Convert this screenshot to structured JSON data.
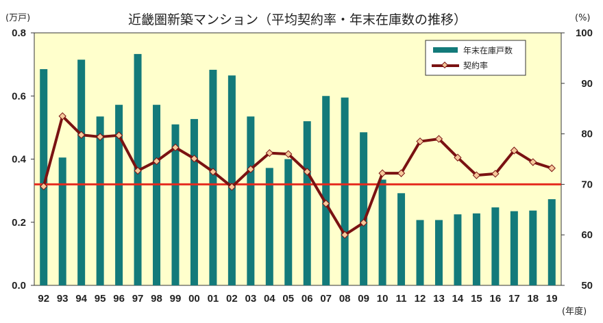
{
  "chart_data": {
    "type": "bar+line",
    "title": "近畿圏新築マンション（平均契約率・年末在庫数の推移）",
    "x_unit_label": "(年度)",
    "y_left_unit_label": "(万戸)",
    "y_right_unit_label": "(%)",
    "categories": [
      "92",
      "93",
      "94",
      "95",
      "96",
      "97",
      "98",
      "99",
      "00",
      "01",
      "02",
      "03",
      "04",
      "05",
      "06",
      "07",
      "08",
      "09",
      "10",
      "11",
      "12",
      "13",
      "14",
      "15",
      "16",
      "17",
      "18",
      "19"
    ],
    "y_left": {
      "min": 0,
      "max": 0.8,
      "ticks": [
        "0.0",
        "0.2",
        "0.4",
        "0.6",
        "0.8"
      ]
    },
    "y_right": {
      "min": 50,
      "max": 100,
      "ticks": [
        "50",
        "60",
        "70",
        "80",
        "90",
        "100"
      ]
    },
    "series": [
      {
        "name": "年末在庫戸数",
        "type": "bar",
        "axis": "left",
        "color": "#137a7a",
        "values": [
          0.685,
          0.405,
          0.715,
          0.535,
          0.572,
          0.733,
          0.572,
          0.51,
          0.527,
          0.683,
          0.665,
          0.535,
          0.372,
          0.4,
          0.52,
          0.6,
          0.595,
          0.485,
          0.335,
          0.292,
          0.207,
          0.207,
          0.225,
          0.228,
          0.247,
          0.235,
          0.237,
          0.273
        ]
      },
      {
        "name": "契約率",
        "type": "line",
        "axis": "right",
        "color": "#7a1212",
        "marker_color": "#f5c89a",
        "values": [
          69.6,
          83.5,
          79.8,
          79.4,
          79.7,
          72.7,
          74.6,
          77.3,
          75.1,
          72.5,
          69.5,
          73.0,
          76.2,
          76.0,
          72.5,
          66.2,
          60.0,
          62.4,
          72.2,
          72.2,
          78.5,
          79.0,
          75.3,
          71.8,
          72.1,
          76.7,
          74.4,
          73.2
        ]
      }
    ],
    "reference_line": {
      "axis": "right",
      "value": 70,
      "color": "#e52b1f"
    },
    "legend": {
      "position": "top-right",
      "items": [
        "年末在庫戸数",
        "契約率"
      ]
    },
    "background_color": "#ffffcc"
  }
}
